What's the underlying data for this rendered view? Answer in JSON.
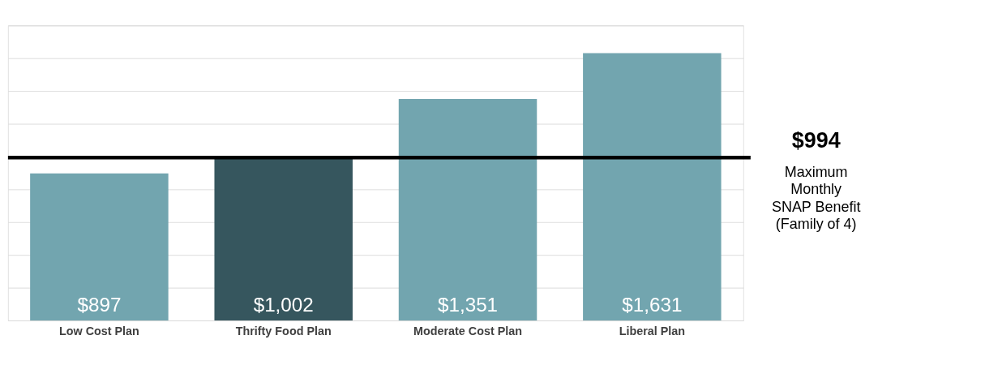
{
  "chart_data": {
    "type": "bar",
    "categories": [
      "Low Cost Plan",
      "Thrifty Food Plan",
      "Moderate Cost Plan",
      "Liberal Plan"
    ],
    "values": [
      897,
      1002,
      1351,
      1631
    ],
    "colors": [
      "#72a5af",
      "#36565e",
      "#72a5af",
      "#72a5af"
    ],
    "value_labels": [
      "$897",
      "$1,002",
      "$1,351",
      "$1,631"
    ],
    "ylim": [
      0,
      1800
    ],
    "yticks": [
      {
        "value": 0,
        "label": null
      },
      {
        "value": 200,
        "label": null
      },
      {
        "value": 400,
        "label": null
      },
      {
        "value": 600,
        "label": null
      },
      {
        "value": 800,
        "label": null
      },
      {
        "value": 1000,
        "label": null
      },
      {
        "value": 1200,
        "label": null
      },
      {
        "value": 1400,
        "label": null
      },
      {
        "value": 1600,
        "label": null
      },
      {
        "value": 1800,
        "label": null
      }
    ],
    "grid": "y",
    "ref_lines": [
      {
        "axis": "y",
        "value": 994,
        "label": "$994",
        "color": "#000000"
      }
    ],
    "annotations": [
      "Maximum\nMonthly\nSNAP Benefit\n(Family of 4)"
    ]
  }
}
